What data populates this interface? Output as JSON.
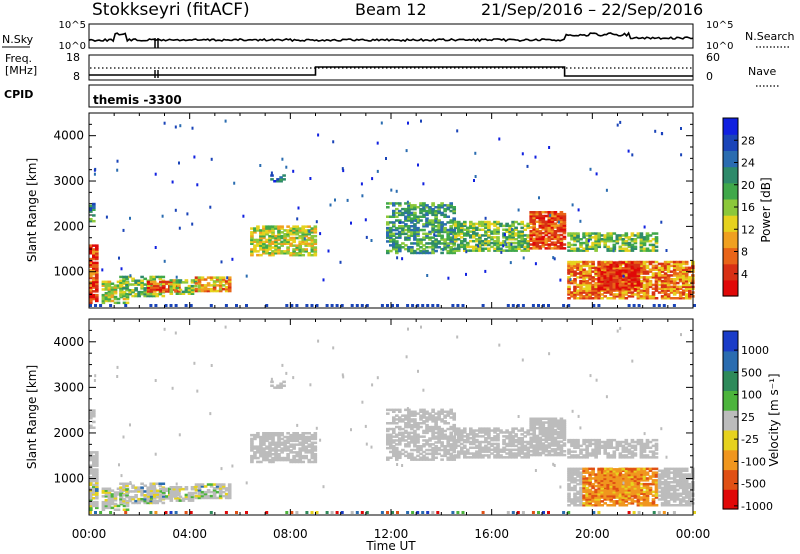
{
  "header": {
    "title": "Stokkseyri (fitACF)",
    "beam": "Beam 12",
    "date_range": "21/Sep/2016 – 22/Sep/2016"
  },
  "strip_nsky": {
    "left_label": "N.Sky",
    "left_ticks": [
      "10^5",
      "10^0"
    ],
    "right_label": "N.Search",
    "right_ticks": [
      "10^5",
      "10^0"
    ]
  },
  "strip_freq": {
    "left_label_line1": "Freq.",
    "left_label_line2": "[MHz]",
    "left_ticks": [
      "18",
      "8"
    ],
    "right_label": "Nave",
    "right_ticks": [
      "60",
      "0"
    ]
  },
  "strip_cpid": {
    "label": "CPID",
    "value": "themis -3300"
  },
  "colors": {
    "power": [
      "#1020e0",
      "#1a44b8",
      "#2a6cb0",
      "#2e8a6a",
      "#40a84a",
      "#8cc83a",
      "#e6d21e",
      "#f0a020",
      "#e86418",
      "#d83014",
      "#e00808"
    ],
    "velocity": [
      "#1a3cc8",
      "#2a6cb0",
      "#2e8a5a",
      "#4cb43c",
      "#bcbcbc",
      "#e6d21e",
      "#f0961e",
      "#e05014",
      "#e00808"
    ],
    "low_range_band": "#1a44b8"
  },
  "chart_data": [
    {
      "type": "heatmap",
      "name": "power",
      "ylabel": "Slant Range [km]",
      "yticks": [
        "1000",
        "2000",
        "3000",
        "4000"
      ],
      "ylim": [
        200,
        4500
      ],
      "xlabel": "Time UT",
      "xticks": [
        "00:00",
        "04:00",
        "08:00",
        "12:00",
        "16:00",
        "20:00",
        "00:00"
      ],
      "xlim_hours": [
        0,
        24
      ],
      "colorbar_label": "Power [dB]",
      "colorbar_ticks": [
        "4",
        "8",
        "12",
        "16",
        "20",
        "24",
        "28"
      ],
      "echo_regions": [
        {
          "t0": 0.0,
          "t1": 0.3,
          "r0": 300,
          "r1": 1600,
          "level": 0.9
        },
        {
          "t0": 0.0,
          "t1": 0.2,
          "r0": 2100,
          "r1": 2500,
          "level": 0.3
        },
        {
          "t0": 0.5,
          "t1": 1.5,
          "r0": 300,
          "r1": 800,
          "level": 0.55
        },
        {
          "t0": 1.2,
          "t1": 3.0,
          "r0": 450,
          "r1": 900,
          "level": 0.45
        },
        {
          "t0": 2.3,
          "t1": 3.6,
          "r0": 550,
          "r1": 780,
          "level": 0.8
        },
        {
          "t0": 3.2,
          "t1": 4.2,
          "r0": 500,
          "r1": 800,
          "level": 0.5
        },
        {
          "t0": 4.2,
          "t1": 5.6,
          "r0": 560,
          "r1": 860,
          "level": 0.7
        },
        {
          "t0": 6.4,
          "t1": 9.0,
          "r0": 1350,
          "r1": 2000,
          "level": 0.55
        },
        {
          "t0": 7.2,
          "t1": 7.7,
          "r0": 2980,
          "r1": 3120,
          "level": 0.2
        },
        {
          "t0": 11.8,
          "t1": 14.5,
          "r0": 1400,
          "r1": 2500,
          "level": 0.35
        },
        {
          "t0": 14.5,
          "t1": 17.5,
          "r0": 1450,
          "r1": 2100,
          "level": 0.45
        },
        {
          "t0": 17.5,
          "t1": 18.9,
          "r0": 1500,
          "r1": 2300,
          "level": 0.85
        },
        {
          "t0": 19.0,
          "t1": 22.5,
          "r0": 1450,
          "r1": 1850,
          "level": 0.45
        },
        {
          "t0": 19.0,
          "t1": 24.0,
          "r0": 400,
          "r1": 1200,
          "level": 0.75
        },
        {
          "t0": 20.2,
          "t1": 21.8,
          "r0": 600,
          "r1": 1200,
          "level": 0.92
        }
      ]
    },
    {
      "type": "heatmap",
      "name": "velocity",
      "ylabel": "Slant Range [km]",
      "yticks": [
        "1000",
        "2000",
        "3000",
        "4000"
      ],
      "ylim": [
        200,
        4500
      ],
      "xlabel": "Time UT",
      "xticks": [
        "00:00",
        "04:00",
        "08:00",
        "12:00",
        "16:00",
        "20:00",
        "00:00"
      ],
      "xlim_hours": [
        0,
        24
      ],
      "colorbar_label": "Velocity [m s⁻¹]",
      "colorbar_ticks": [
        "1000",
        "500",
        "100",
        "25",
        "-25",
        "-100",
        "-500",
        "-1000"
      ]
    }
  ]
}
